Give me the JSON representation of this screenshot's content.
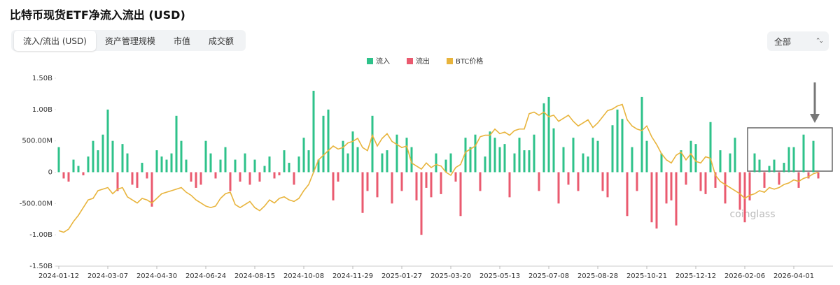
{
  "header": {
    "title": "比特币现货ETF净流入流出 (USD)",
    "tabs": [
      "流入/流出 (USD)",
      "资产管理规模",
      "市值",
      "成交额"
    ],
    "range_select": "全部"
  },
  "chart_data": {
    "type": "bar",
    "watermark": "coinglass",
    "categories": [
      "2024-01-12",
      null,
      null,
      null,
      null,
      null,
      null,
      null,
      null,
      null,
      "2024-03-07",
      null,
      null,
      null,
      null,
      null,
      null,
      null,
      null,
      null,
      "2024-04-30",
      null,
      null,
      null,
      null,
      null,
      null,
      null,
      null,
      null,
      "2024-06-24",
      null,
      null,
      null,
      null,
      null,
      null,
      null,
      null,
      null,
      "2024-08-15",
      null,
      null,
      null,
      null,
      null,
      null,
      null,
      null,
      null,
      "2024-10-08",
      null,
      null,
      null,
      null,
      null,
      null,
      null,
      null,
      null,
      "2024-11-29",
      null,
      null,
      null,
      null,
      null,
      null,
      null,
      null,
      null,
      "2025-01-27",
      null,
      null,
      null,
      null,
      null,
      null,
      null,
      null,
      null,
      "2025-03-20",
      null,
      null,
      null,
      null,
      null,
      null,
      null,
      null,
      null,
      "2025-05-13",
      null,
      null,
      null,
      null,
      null,
      null,
      null,
      null,
      null,
      "2025-07-08",
      null,
      null,
      null,
      null,
      null,
      null,
      null,
      null,
      null,
      "2025-08-28",
      null,
      null,
      null,
      null,
      null,
      null,
      null,
      null,
      null,
      "2025-10-21",
      null,
      null,
      null,
      null,
      null,
      null,
      null,
      null,
      null,
      "2025-12-12",
      null,
      null,
      null,
      null,
      null,
      null,
      null,
      null,
      null,
      "2026-02-06",
      null,
      null,
      null,
      null,
      null,
      null,
      null,
      null,
      null,
      "2026-04-01",
      null,
      null,
      null,
      null,
      null
    ],
    "series": [
      {
        "name": "流入",
        "type": "bar",
        "color": "#2ec28a",
        "values": [
          400,
          null,
          null,
          200,
          100,
          null,
          250,
          500,
          350,
          600,
          1000,
          500,
          null,
          450,
          300,
          null,
          null,
          150,
          null,
          null,
          350,
          250,
          200,
          300,
          900,
          500,
          200,
          null,
          null,
          null,
          500,
          300,
          null,
          200,
          400,
          null,
          200,
          null,
          300,
          null,
          200,
          null,
          100,
          250,
          null,
          null,
          350,
          150,
          null,
          250,
          550,
          350,
          1300,
          200,
          900,
          1000,
          null,
          null,
          500,
          300,
          650,
          400,
          null,
          null,
          900,
          null,
          300,
          350,
          null,
          600,
          null,
          550,
          400,
          null,
          null,
          null,
          null,
          300,
          null,
          200,
          300,
          null,
          null,
          550,
          400,
          600,
          null,
          250,
          650,
          550,
          400,
          450,
          null,
          300,
          550,
          350,
          350,
          600,
          null,
          1100,
          1200,
          700,
          null,
          400,
          null,
          550,
          null,
          300,
          250,
          550,
          500,
          null,
          null,
          750,
          1000,
          850,
          null,
          400,
          null,
          1200,
          500,
          null,
          null,
          300,
          null,
          null,
          null,
          350,
          null,
          500,
          450,
          null,
          null,
          800,
          null,
          350,
          null,
          300,
          550,
          null,
          null,
          null,
          300,
          200,
          null,
          100,
          200,
          null,
          150,
          400,
          400,
          null,
          600,
          null,
          500,
          null
        ]
      },
      {
        "name": "流出",
        "type": "bar",
        "color": "#ea5a6f",
        "values": [
          null,
          -100,
          -150,
          null,
          null,
          -50,
          null,
          null,
          null,
          null,
          null,
          null,
          -300,
          null,
          null,
          -200,
          -250,
          null,
          -100,
          -550,
          null,
          null,
          null,
          null,
          null,
          null,
          null,
          -150,
          -250,
          -200,
          null,
          null,
          -100,
          null,
          null,
          -300,
          null,
          -150,
          null,
          -200,
          null,
          -150,
          null,
          null,
          -100,
          -50,
          null,
          null,
          -200,
          null,
          null,
          null,
          null,
          null,
          null,
          null,
          -450,
          -150,
          null,
          null,
          null,
          null,
          -650,
          -300,
          null,
          -400,
          null,
          null,
          -500,
          null,
          -300,
          null,
          null,
          -450,
          -1000,
          -250,
          -400,
          null,
          -350,
          null,
          null,
          -150,
          -700,
          null,
          null,
          null,
          -300,
          null,
          null,
          null,
          null,
          null,
          -400,
          null,
          null,
          null,
          null,
          null,
          -300,
          null,
          null,
          null,
          -500,
          null,
          -200,
          null,
          -300,
          null,
          null,
          null,
          null,
          -300,
          -400,
          null,
          null,
          null,
          -700,
          null,
          -300,
          null,
          null,
          -800,
          -900,
          null,
          -500,
          -450,
          -850,
          null,
          -200,
          null,
          null,
          -300,
          -350,
          null,
          -250,
          null,
          -500,
          null,
          null,
          -600,
          -800,
          -450,
          null,
          null,
          -250,
          null,
          null,
          -200,
          null,
          null,
          null,
          -250,
          null,
          -100,
          null,
          -100
        ]
      },
      {
        "name": "BTC价格",
        "type": "line",
        "axis": "y2",
        "color": "#e8b43c",
        "values": [
          42000,
          41000,
          43000,
          48000,
          52000,
          57000,
          62000,
          63000,
          68000,
          69000,
          70000,
          66000,
          69000,
          70000,
          64000,
          62000,
          60000,
          63000,
          62000,
          60000,
          63000,
          66000,
          67000,
          68000,
          69000,
          70000,
          67000,
          65000,
          62000,
          60000,
          58000,
          57000,
          58000,
          63000,
          66000,
          67000,
          59000,
          57000,
          59000,
          61000,
          57000,
          55000,
          58000,
          62000,
          60000,
          63000,
          64000,
          62000,
          61000,
          63000,
          68000,
          72000,
          80000,
          88000,
          91000,
          94000,
          97000,
          95000,
          96000,
          99000,
          100000,
          102000,
          96000,
          94000,
          104000,
          97000,
          102000,
          105000,
          100000,
          98000,
          96000,
          97000,
          86000,
          84000,
          82000,
          86000,
          83000,
          85000,
          84000,
          80000,
          78000,
          83000,
          85000,
          93000,
          95000,
          97000,
          103000,
          104000,
          104000,
          108000,
          105000,
          106000,
          104000,
          107000,
          108000,
          108000,
          118000,
          119000,
          117000,
          119000,
          116000,
          117000,
          113000,
          115000,
          117000,
          113000,
          110000,
          112000,
          114000,
          109000,
          112000,
          116000,
          120000,
          121000,
          123000,
          124000,
          114000,
          110000,
          108000,
          107000,
          110000,
          103000,
          98000,
          92000,
          88000,
          86000,
          91000,
          93000,
          88000,
          92000,
          87000,
          86000,
          90000,
          89000,
          78000,
          74000,
          72000,
          70000,
          68000,
          66000,
          63000,
          65000,
          66000,
          68000,
          67000,
          70000,
          69000,
          70000,
          72000,
          73000,
          75000,
          74000,
          76000,
          77000,
          79000,
          80000
        ]
      }
    ],
    "ylim": [
      -1500,
      1500
    ],
    "yticks": [
      {
        "value": 1500,
        "label": "1.50B"
      },
      {
        "value": 1000,
        "label": "1.00B"
      },
      {
        "value": 500,
        "label": "500.00M"
      },
      0,
      {
        "value": -500,
        "label": "-500.00M"
      },
      {
        "value": -1000,
        "label": "-1.00B"
      },
      {
        "value": -1500,
        "label": "-1.50B"
      }
    ],
    "y2lim": [
      19000,
      141000
    ],
    "grid": false
  }
}
